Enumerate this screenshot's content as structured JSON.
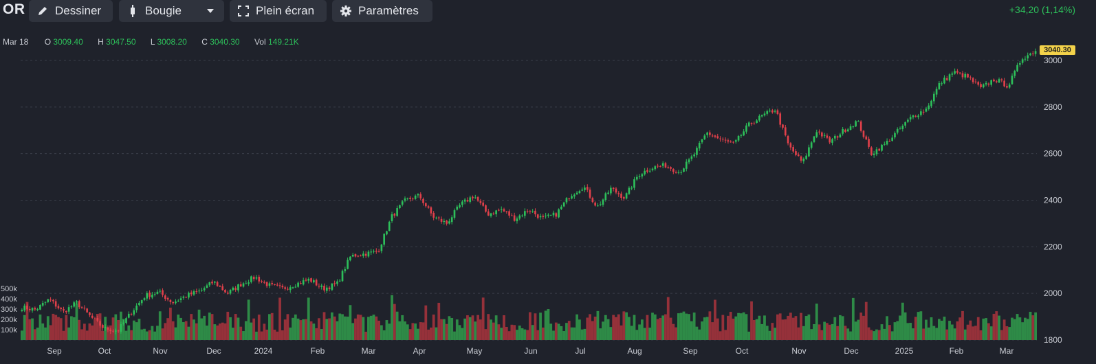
{
  "toolbar": {
    "symbol": "OR",
    "draw_label": "Dessiner",
    "chart_type_label": "Bougie",
    "fullscreen_label": "Plein écran",
    "settings_label": "Paramètres",
    "change_text": "+34,20 (1,14%)"
  },
  "ohlc": {
    "date": "Mar 18",
    "o_label": "O",
    "o_value": "3009.40",
    "h_label": "H",
    "h_value": "3047.50",
    "l_label": "L",
    "l_value": "3008.20",
    "c_label": "C",
    "c_value": "3040.30",
    "vol_label": "Vol",
    "vol_value": "149.21K"
  },
  "last_price_label": "3040.30",
  "colors": {
    "background": "#1f222b",
    "up": "#2dbf5a",
    "down": "#e0404a",
    "up_volume": "#2e8b47",
    "down_volume": "#96313a",
    "last_price_badge": "#f3d24a"
  },
  "chart_data": {
    "type": "candlestick",
    "price_axis": {
      "ticks": [
        1800,
        2000,
        2200,
        2400,
        2600,
        2800,
        3000
      ],
      "range": [
        1800,
        3050
      ]
    },
    "volume_axis": {
      "ticks": [
        "100k",
        "200k",
        "300k",
        "400k",
        "500k"
      ]
    },
    "x_labels": [
      "Sep",
      "Oct",
      "Nov",
      "Dec",
      "2024",
      "Feb",
      "Mar",
      "Apr",
      "May",
      "Jun",
      "Jul",
      "Aug",
      "Sep",
      "Oct",
      "Nov",
      "Dec",
      "2025",
      "Feb",
      "Mar"
    ],
    "close_path": [
      1940,
      1930,
      1975,
      1920,
      1960,
      1900,
      1850,
      1840,
      1920,
      1990,
      2005,
      1960,
      1990,
      2010,
      2050,
      2000,
      2040,
      2070,
      2035,
      2020,
      2040,
      2060,
      2020,
      2040,
      2160,
      2170,
      2180,
      2330,
      2400,
      2420,
      2330,
      2300,
      2380,
      2420,
      2340,
      2360,
      2320,
      2360,
      2320,
      2340,
      2420,
      2460,
      2370,
      2450,
      2410,
      2510,
      2540,
      2550,
      2520,
      2590,
      2690,
      2660,
      2640,
      2720,
      2760,
      2790,
      2630,
      2560,
      2700,
      2650,
      2700,
      2740,
      2600,
      2640,
      2700,
      2760,
      2790,
      2900,
      2950,
      2930,
      2880,
      2920,
      2890,
      3010,
      3040.3
    ]
  }
}
